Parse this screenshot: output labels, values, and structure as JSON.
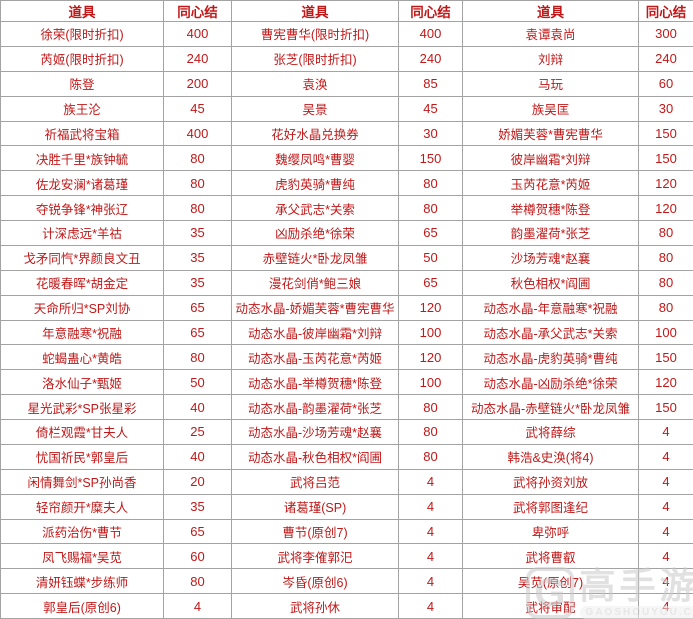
{
  "colors": {
    "text_red": "#c01818",
    "border_gray": "#a3a3a3",
    "background": "#ffffff",
    "watermark_gray": "#c9c9c9"
  },
  "table": {
    "header": {
      "item": "道具",
      "value": "同心结"
    },
    "groups": [
      {
        "rows": [
          [
            "徐荣(限时折扣)",
            "400"
          ],
          [
            "芮姬(限时折扣)",
            "240"
          ],
          [
            "陈登",
            "200"
          ],
          [
            "族王沦",
            "45"
          ],
          [
            "祈福武将宝箱",
            "400"
          ],
          [
            "决胜千里*族钟毓",
            "80"
          ],
          [
            "佐龙安澜*诸葛瑾",
            "80"
          ],
          [
            "夺锐争锋*神张辽",
            "80"
          ],
          [
            "计深虑远*羊祜",
            "35"
          ],
          [
            "戈矛同忾*界颜良文丑",
            "35"
          ],
          [
            "花暖春晖*胡金定",
            "35"
          ],
          [
            "天命所归*SP刘协",
            "65"
          ],
          [
            "年意融寒*祝融",
            "65"
          ],
          [
            "蛇蝎蛊心*黄皓",
            "80"
          ],
          [
            "洛水仙子*甄姬",
            "50"
          ],
          [
            "星光武彩*SP张星彩",
            "40"
          ],
          [
            "倚栏观霞*甘夫人",
            "25"
          ],
          [
            "忧国祈民*郭皇后",
            "40"
          ],
          [
            "闲情舞剑*SP孙尚香",
            "20"
          ],
          [
            "轻帘颜开*糜夫人",
            "35"
          ],
          [
            "派药治伤*曹节",
            "65"
          ],
          [
            "凤飞赐福*吴苋",
            "60"
          ],
          [
            "清妍钰蝶*步练师",
            "80"
          ],
          [
            "郭皇后(原创6)",
            "4"
          ]
        ]
      },
      {
        "rows": [
          [
            "曹宪曹华(限时折扣)",
            "400"
          ],
          [
            "张芝(限时折扣)",
            "240"
          ],
          [
            "袁涣",
            "85"
          ],
          [
            "吴景",
            "45"
          ],
          [
            "花好水晶兑换券",
            "30"
          ],
          [
            "魏缨凤鸣*曹婴",
            "150"
          ],
          [
            "虎豹英骑*曹纯",
            "80"
          ],
          [
            "承父武志*关索",
            "80"
          ],
          [
            "凶励杀绝*徐荣",
            "65"
          ],
          [
            "赤壁链火*卧龙凤雏",
            "50"
          ],
          [
            "漫花剑俏*鲍三娘",
            "65"
          ],
          [
            "动态水晶-娇媚芙蓉*曹宪曹华",
            "120"
          ],
          [
            "动态水晶-彼岸幽霜*刘辩",
            "100"
          ],
          [
            "动态水晶-玉芮花意*芮姬",
            "120"
          ],
          [
            "动态水晶-举樽贺穗*陈登",
            "100"
          ],
          [
            "动态水晶-韵墨濯荷*张芝",
            "80"
          ],
          [
            "动态水晶-沙场芳魂*赵襄",
            "80"
          ],
          [
            "动态水晶-秋色相权*阎圃",
            "80"
          ],
          [
            "武将吕范",
            "4"
          ],
          [
            "诸葛瑾(SP)",
            "4"
          ],
          [
            "曹节(原创7)",
            "4"
          ],
          [
            "武将李傕郭汜",
            "4"
          ],
          [
            "岑昏(原创6)",
            "4"
          ],
          [
            "武将孙休",
            "4"
          ]
        ]
      },
      {
        "rows": [
          [
            "袁谭袁尚",
            "300"
          ],
          [
            "刘辩",
            "240"
          ],
          [
            "马玩",
            "60"
          ],
          [
            "族吴匡",
            "30"
          ],
          [
            "娇媚芙蓉*曹宪曹华",
            "150"
          ],
          [
            "彼岸幽霜*刘辩",
            "150"
          ],
          [
            "玉芮花意*芮姬",
            "120"
          ],
          [
            "举樽贺穗*陈登",
            "120"
          ],
          [
            "韵墨濯荷*张芝",
            "80"
          ],
          [
            "沙场芳魂*赵襄",
            "80"
          ],
          [
            "秋色相权*阎圃",
            "80"
          ],
          [
            "动态水晶-年意融寒*祝融",
            "80"
          ],
          [
            "动态水晶-承父武志*关索",
            "100"
          ],
          [
            "动态水晶-虎豹英骑*曹纯",
            "150"
          ],
          [
            "动态水晶-凶励杀绝*徐荣",
            "120"
          ],
          [
            "动态水晶-赤壁链火*卧龙凤雏",
            "150"
          ],
          [
            "武将薛综",
            "4"
          ],
          [
            "韩浩&史涣(将4)",
            "4"
          ],
          [
            "武将孙资刘放",
            "4"
          ],
          [
            "武将郭图逢纪",
            "4"
          ],
          [
            "卑弥呼",
            "4"
          ],
          [
            "武将曹叡",
            "4"
          ],
          [
            "吴苋(原创7)",
            "4"
          ],
          [
            "武将审配",
            "4"
          ]
        ]
      }
    ]
  },
  "watermark": {
    "logo": "G",
    "title": "高手游",
    "subtitle": "GAOSHOUYOU.COM"
  }
}
